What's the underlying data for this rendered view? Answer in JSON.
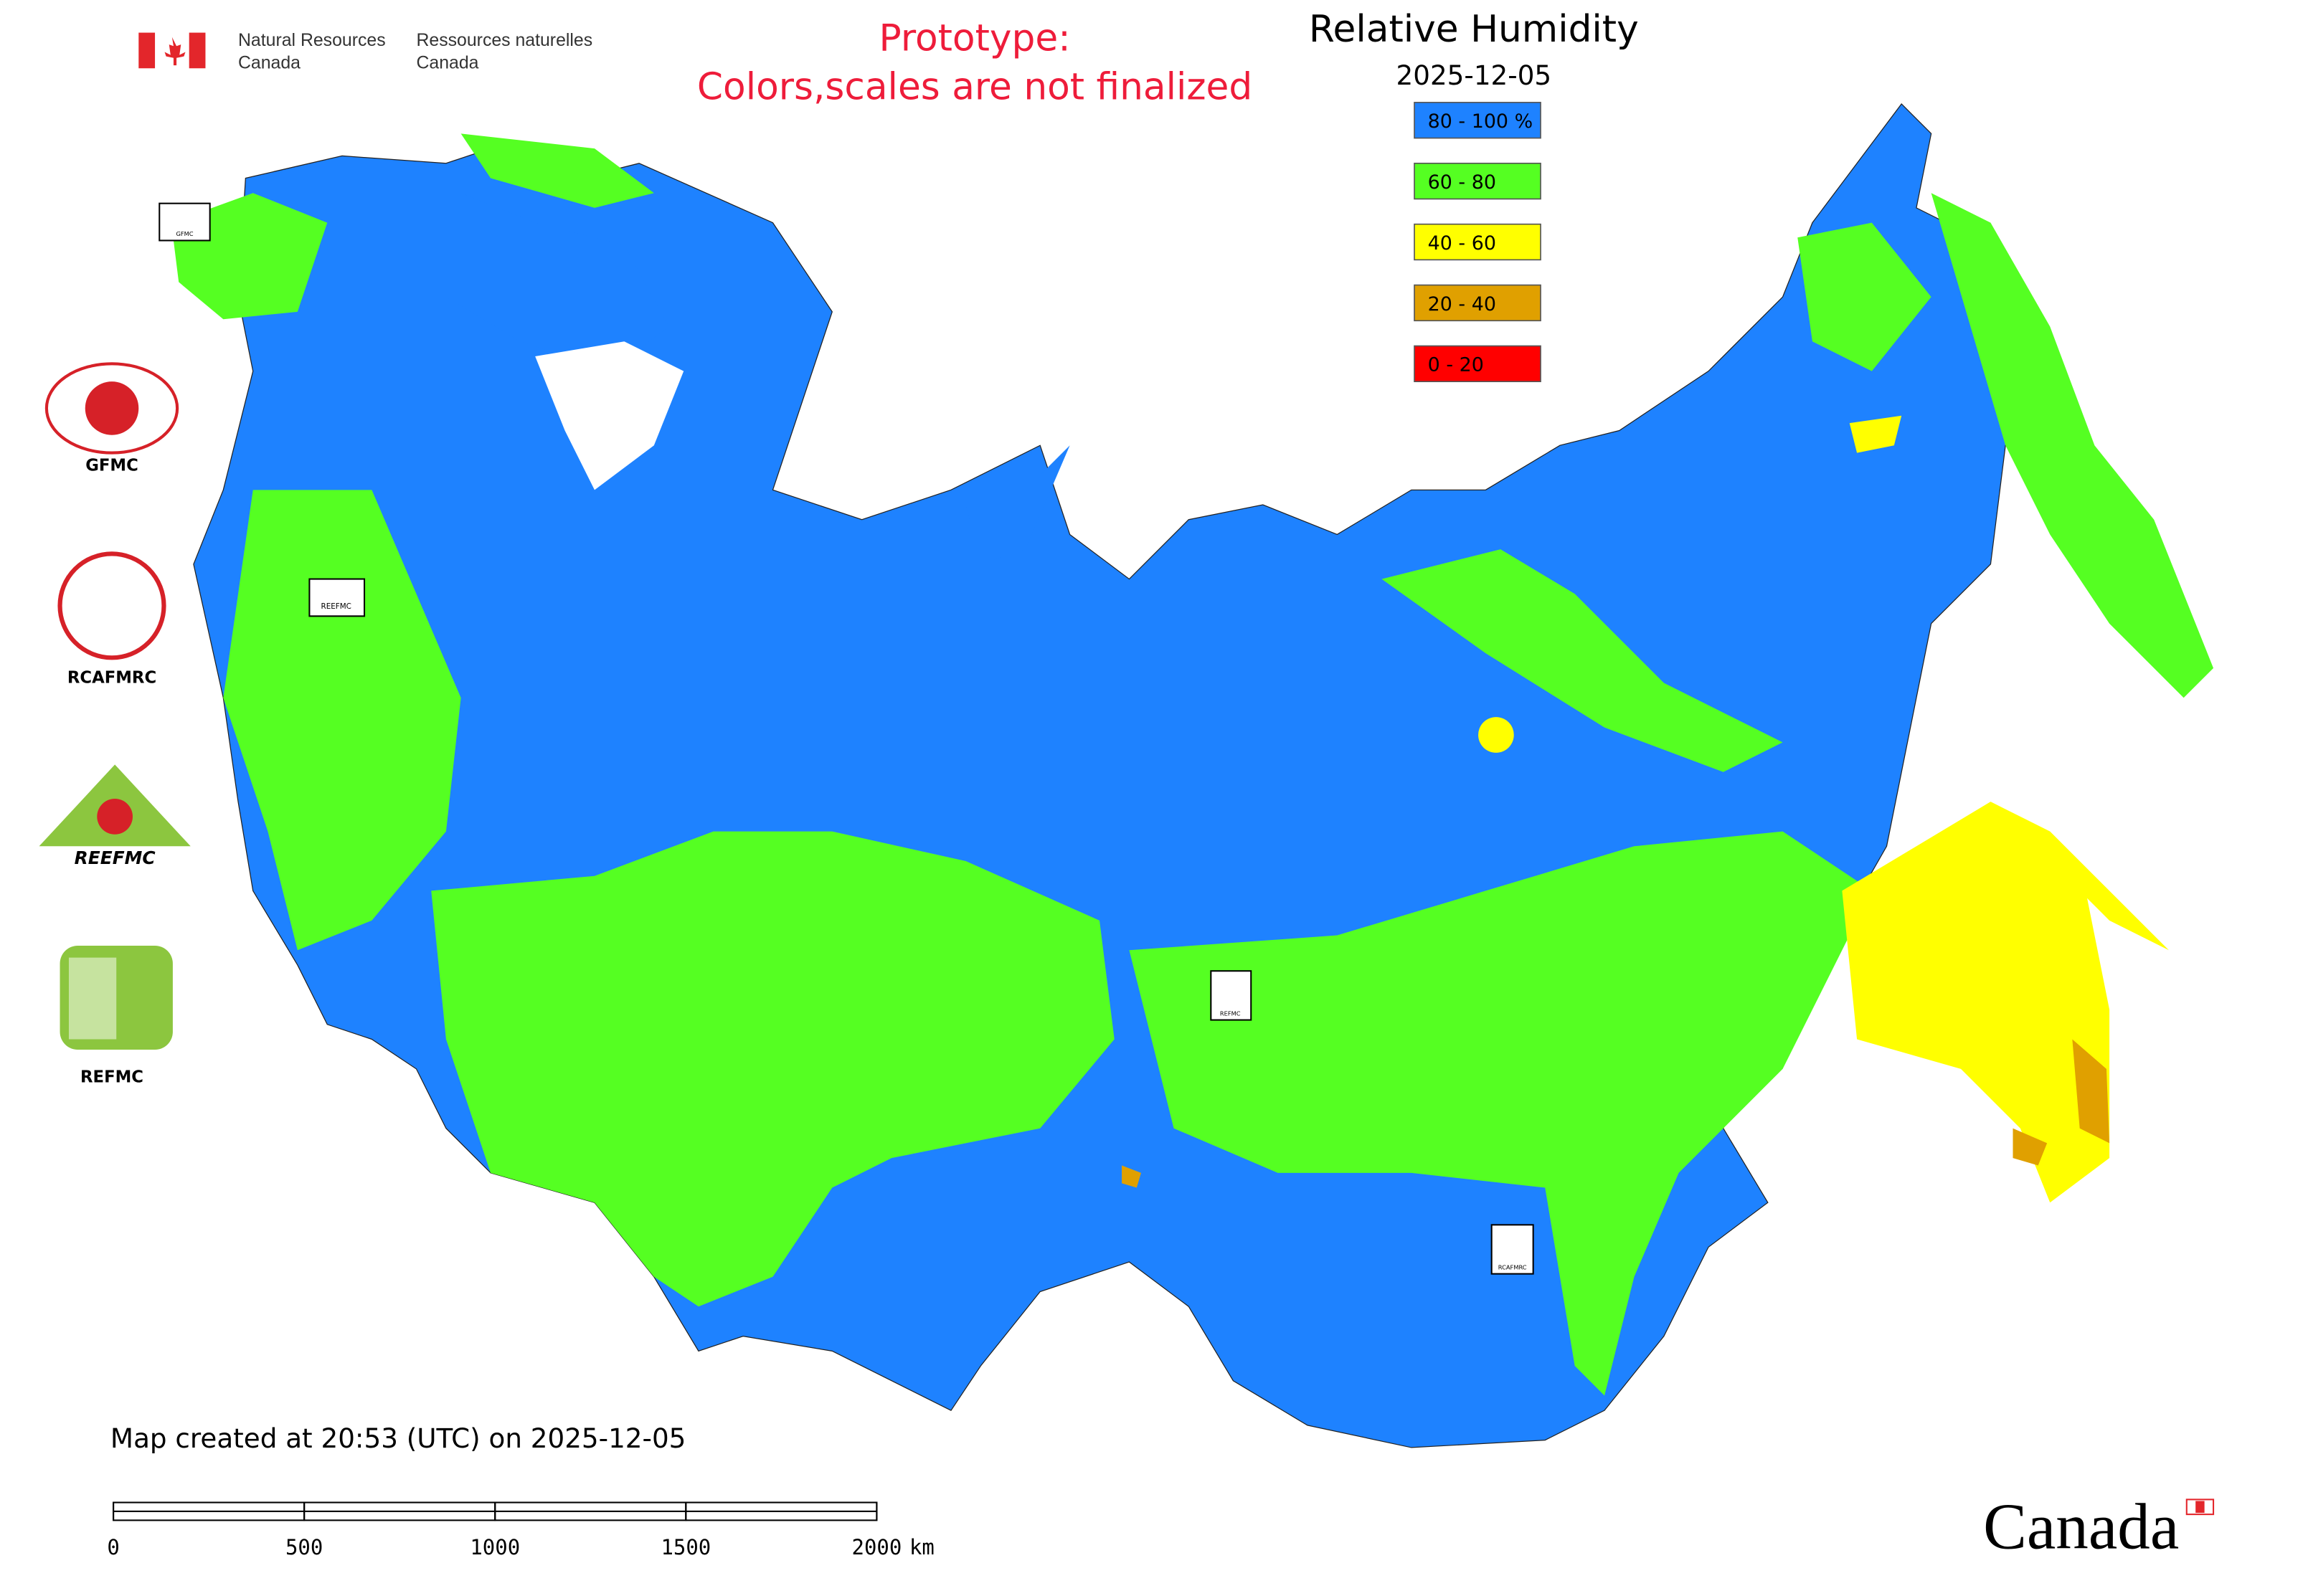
{
  "header": {
    "agency_en": [
      "Natural Resources",
      "Canada"
    ],
    "agency_fr": [
      "Ressources naturelles",
      "Canada"
    ]
  },
  "notice": [
    "Prototype:",
    "Colors,scales are not finalized"
  ],
  "legend": {
    "title": "Relative Humidity",
    "date": "2025-12-05",
    "items": [
      {
        "label": "80 - 100 %",
        "color": "#1e82ff"
      },
      {
        "label": "60 - 80",
        "color": "#55ff22"
      },
      {
        "label": "40 - 60",
        "color": "#ffff00"
      },
      {
        "label": "20 - 40",
        "color": "#e0a000"
      },
      {
        "label": "0 - 20",
        "color": "#ff0000"
      }
    ]
  },
  "logos": [
    "GFMC",
    "RCAFMRC",
    "REEFMC",
    "REFMC"
  ],
  "markers": [
    "GFMC",
    "REEFMC",
    "REFMC",
    "RCAFMRC"
  ],
  "footer": {
    "created": "Map created at 20:53 (UTC) on 2025-12-05",
    "scale_bar": {
      "ticks": [
        0,
        500,
        1000,
        1500,
        2000
      ],
      "unit": "km"
    },
    "wordmark": "Canada"
  }
}
